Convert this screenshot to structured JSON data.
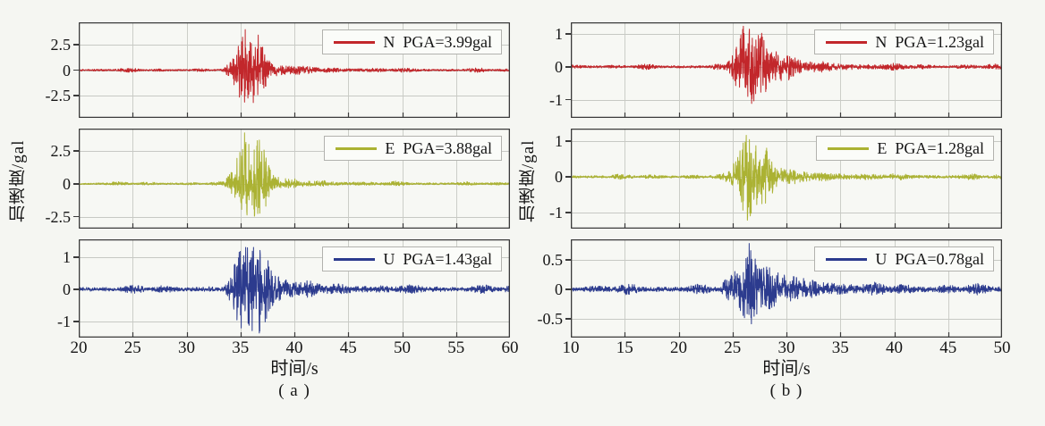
{
  "chart_data": {
    "type": "line",
    "subtype": "seismic-acceleration-waveforms",
    "title": "",
    "xlabel": "时间/s",
    "ylabel": "加速度/gal",
    "grid": true,
    "legend_position": "upper right",
    "style": {
      "background": "#f5f6f2",
      "plot_background": "#f7f8f4",
      "grid_color": "#c7c9c4",
      "frame_color": "#3b3b3b",
      "legend_border": "#b2b2ae",
      "text_color": "#161616"
    },
    "panels": [
      {
        "id": "a",
        "caption": "( a )",
        "xlim": [
          20,
          60
        ],
        "xticks": [
          20,
          25,
          30,
          35,
          40,
          45,
          50,
          55,
          60
        ],
        "subplots": [
          {
            "component": "N",
            "legend": "N  PGA=3.99gal",
            "pga_gal": 3.99,
            "color": "#c2272b",
            "ylim": [
              -4.7,
              4.7
            ],
            "yticks": [
              2.5,
              0,
              -2.5
            ],
            "envelope": {
              "onset_s": 33.2,
              "peak_s": 35.5,
              "rise_pow": 1.8,
              "decay_s": 0.85,
              "coda_s": 4.2,
              "coda_frac": 0.16,
              "main_frac": 0.95,
              "noise_gal": 0.13,
              "neg_scale": 1.0,
              "bumps": [
                [
                  36.7,
                  0.42,
                  0.45
                ]
              ]
            }
          },
          {
            "component": "E",
            "legend": "E  PGA=3.88gal",
            "pga_gal": 3.88,
            "color": "#abb233",
            "ylim": [
              -3.4,
              4.2
            ],
            "yticks": [
              2.5,
              0,
              -2.5
            ],
            "envelope": {
              "onset_s": 33.2,
              "peak_s": 35.4,
              "rise_pow": 1.8,
              "decay_s": 0.95,
              "coda_s": 4.2,
              "coda_frac": 0.16,
              "main_frac": 0.95,
              "noise_gal": 0.12,
              "neg_scale": 0.72,
              "bumps": [
                [
                  36.6,
                  0.5,
                  0.4
                ],
                [
                  37.3,
                  0.3,
                  0.35
                ]
              ]
            }
          },
          {
            "component": "U",
            "legend": "U  PGA=1.43gal",
            "pga_gal": 1.43,
            "color": "#2c3b8e",
            "ylim": [
              -1.5,
              1.55
            ],
            "yticks": [
              1,
              0,
              -1
            ],
            "envelope": {
              "onset_s": 33.4,
              "peak_s": 35.1,
              "rise_pow": 1.6,
              "decay_s": 1.8,
              "coda_s": 5.0,
              "coda_frac": 0.22,
              "main_frac": 0.88,
              "noise_gal": 0.09,
              "neg_scale": 0.95,
              "bumps": [
                [
                  36.8,
                  0.5,
                  0.6
                ]
              ]
            }
          }
        ]
      },
      {
        "id": "b",
        "caption": "( b )",
        "xlim": [
          10,
          50
        ],
        "xticks": [
          10,
          15,
          20,
          25,
          30,
          35,
          40,
          45,
          50
        ],
        "subplots": [
          {
            "component": "N",
            "legend": "N  PGA=1.23gal",
            "pga_gal": 1.23,
            "color": "#c2272b",
            "ylim": [
              -1.55,
              1.35
            ],
            "yticks": [
              1,
              0,
              -1
            ],
            "envelope": {
              "onset_s": 23.9,
              "peak_s": 26.15,
              "rise_pow": 2.2,
              "decay_s": 0.8,
              "coda_s": 5.2,
              "coda_frac": 0.2,
              "main_frac": 0.95,
              "noise_gal": 0.045,
              "neg_scale": 1.0,
              "bumps": [
                [
                  27.5,
                  0.38,
                  0.55
                ],
                [
                  29.5,
                  0.15,
                  1.0
                ]
              ]
            }
          },
          {
            "component": "E",
            "legend": "E  PGA=1.28gal",
            "pga_gal": 1.28,
            "color": "#abb233",
            "ylim": [
              -1.45,
              1.35
            ],
            "yticks": [
              1,
              0,
              -1
            ],
            "envelope": {
              "onset_s": 23.9,
              "peak_s": 26.4,
              "rise_pow": 2.0,
              "decay_s": 0.9,
              "coda_s": 5.0,
              "coda_frac": 0.2,
              "main_frac": 0.95,
              "noise_gal": 0.05,
              "neg_scale": 0.95,
              "bumps": [
                [
                  28.1,
                  0.3,
                  0.6
                ]
              ]
            }
          },
          {
            "component": "U",
            "legend": "U  PGA=0.78gal",
            "pga_gal": 0.78,
            "color": "#2c3b8e",
            "ylim": [
              -0.82,
              0.85
            ],
            "yticks": [
              0.5,
              0,
              -0.5
            ],
            "envelope": {
              "onset_s": 23.7,
              "peak_s": 26.5,
              "rise_pow": 1.2,
              "decay_s": 2.3,
              "coda_s": 5.8,
              "coda_frac": 0.28,
              "main_frac": 0.62,
              "noise_gal": 0.055,
              "neg_scale": 0.9,
              "bumps": [
                [
                  26.62,
                  0.45,
                  0.12
                ],
                [
                  27.0,
                  0.3,
                  0.1
                ]
              ]
            }
          }
        ]
      }
    ]
  }
}
